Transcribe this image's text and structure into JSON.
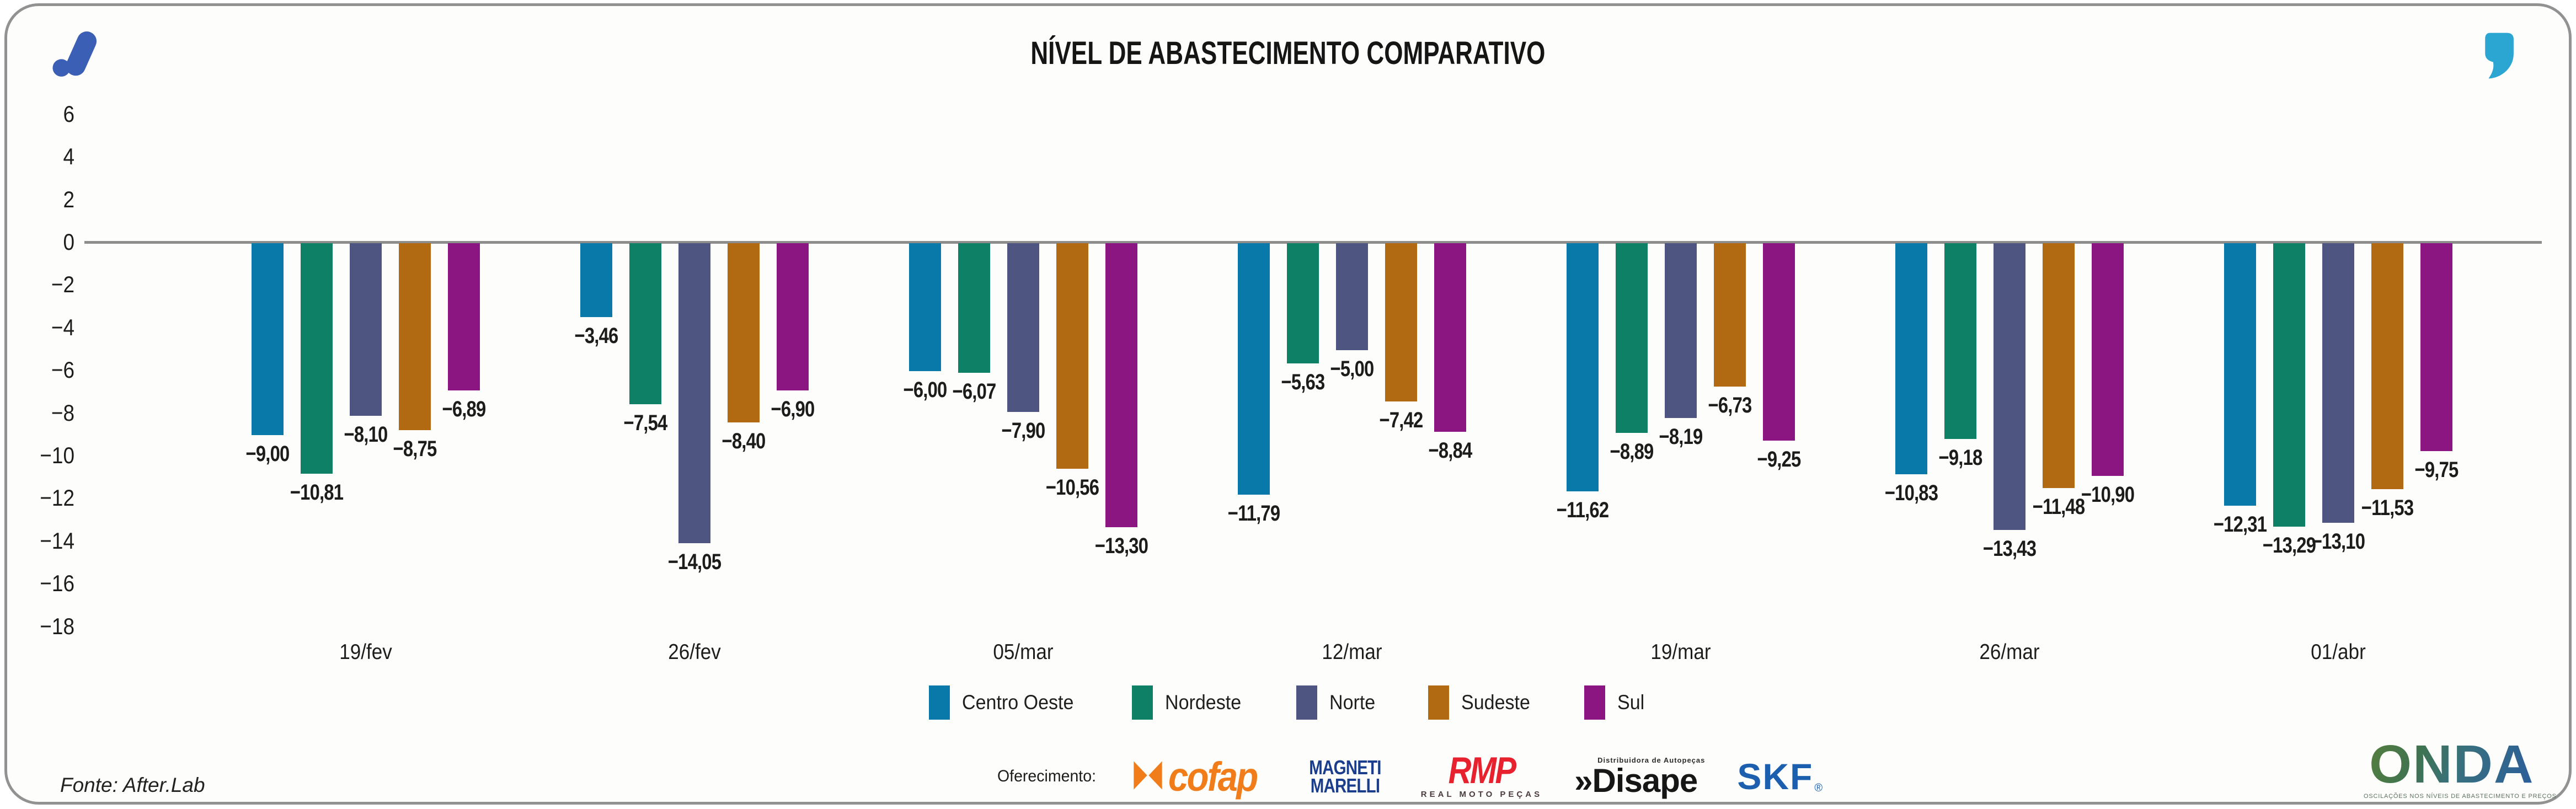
{
  "header": {
    "title": "NÍVEL DE ABASTECIMENTO COMPARATIVO"
  },
  "chart_data": {
    "type": "bar",
    "title": "NÍVEL DE ABASTECIMENTO COMPARATIVO",
    "categories": [
      "19/fev",
      "26/fev",
      "05/mar",
      "12/mar",
      "19/mar",
      "26/mar",
      "01/abr"
    ],
    "series": [
      {
        "name": "Centro Oeste",
        "color": "#0879A8",
        "values": [
          -9.0,
          -3.46,
          -6.0,
          -11.79,
          -11.62,
          -10.83,
          -12.31
        ]
      },
      {
        "name": "Nordeste",
        "color": "#0D8066",
        "values": [
          -10.81,
          -7.54,
          -6.07,
          -5.63,
          -8.89,
          -9.18,
          -13.29
        ]
      },
      {
        "name": "Norte",
        "color": "#4E5580",
        "values": [
          -8.1,
          -14.05,
          -7.9,
          -5.0,
          -8.19,
          -13.43,
          -13.1
        ]
      },
      {
        "name": "Sudeste",
        "color": "#B16A12",
        "values": [
          -8.75,
          -8.4,
          -10.56,
          -7.42,
          -6.73,
          -11.48,
          -11.53
        ]
      },
      {
        "name": "Sul",
        "color": "#8B1681",
        "values": [
          -6.89,
          -6.9,
          -13.3,
          -8.84,
          -9.25,
          -10.9,
          -9.75
        ]
      }
    ],
    "yticks": [
      6,
      4,
      2,
      0,
      -2,
      -4,
      -6,
      -8,
      -10,
      -12,
      -14,
      -16,
      -18
    ],
    "ylim": [
      6,
      -18
    ],
    "xlabel": "",
    "ylabel": "",
    "grid": false,
    "legend_position": "bottom",
    "decimal_separator": ","
  },
  "footer": {
    "source": "Fonte: After.Lab",
    "sponsor_label": "Oferecimento:",
    "sponsors": {
      "cofap": {
        "text": "cofap"
      },
      "magneti": {
        "line1": "MAGNETI",
        "line2": "MARELLI"
      },
      "rmp": {
        "text": "RMP",
        "subtext": "REAL MOTO PEÇAS"
      },
      "disape": {
        "top": "Distribuidora de Autopeças",
        "prefix": "»",
        "text": "Disape"
      },
      "skf": {
        "text": "SKF",
        "reg": "®"
      }
    },
    "onda": {
      "text": "ONDA",
      "tagline": "OSCILAÇÕES NOS NÍVEIS DE ABASTECIMENTO E PREÇOS"
    }
  }
}
